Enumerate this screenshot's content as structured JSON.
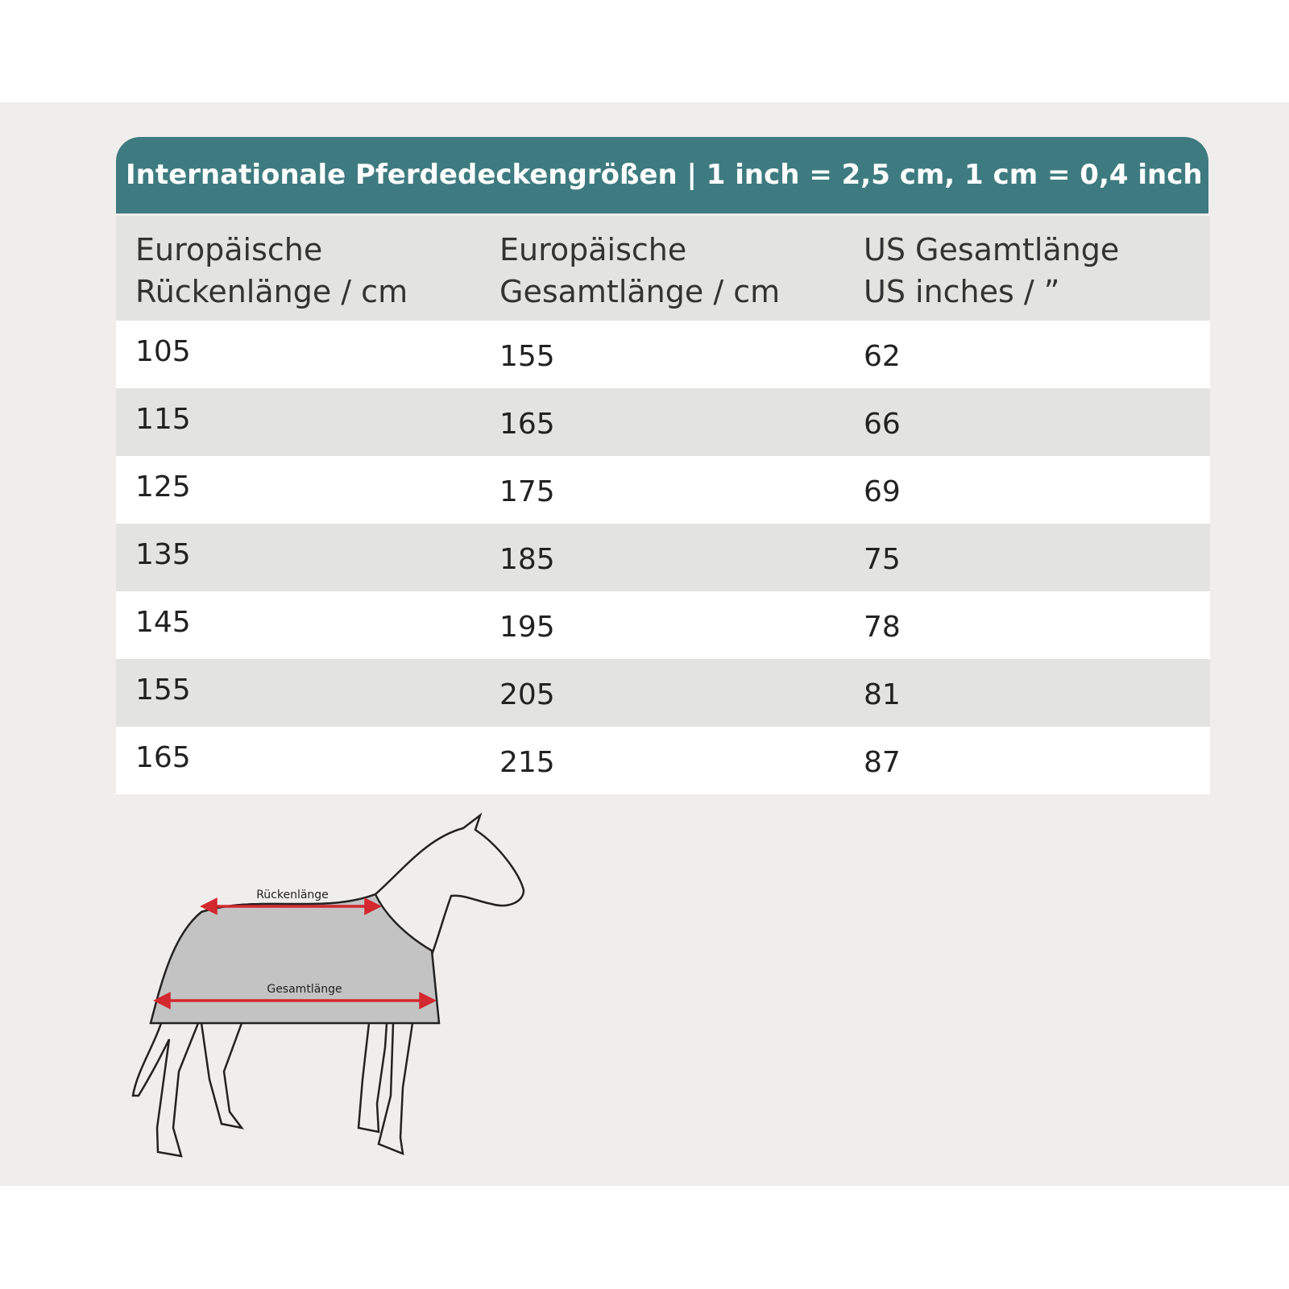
{
  "header": {
    "title": "Internationale Pferdedeckengrößen | 1 inch = 2,5 cm, 1 cm = 0,4 inch"
  },
  "table": {
    "columns": [
      [
        "Europäische",
        "Rückenlänge / cm"
      ],
      [
        "Europäische",
        "Gesamtlänge / cm"
      ],
      [
        "US Gesamtlänge",
        "US inches / ”"
      ]
    ],
    "rows": [
      [
        105,
        155,
        62
      ],
      [
        115,
        165,
        66
      ],
      [
        125,
        175,
        69
      ],
      [
        135,
        185,
        75
      ],
      [
        145,
        195,
        78
      ],
      [
        155,
        205,
        81
      ],
      [
        165,
        215,
        87
      ]
    ]
  },
  "diagram": {
    "back_length_label": "Rückenlänge",
    "total_length_label": "Gesamtlänge"
  }
}
